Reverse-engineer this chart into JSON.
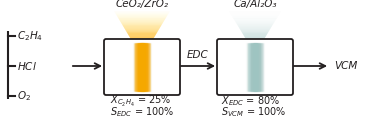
{
  "reactants": [
    "C₂H₄",
    "HCl",
    "O₂"
  ],
  "product": "VCM",
  "intermediate": "EDC",
  "cat1_label": "CeO₂/ZrO₂",
  "cat2_label": "Ca/Al₂O₃",
  "bg_color": "#ffffff",
  "text_color": "#231f20",
  "orange_color": "#f5a800",
  "teal_color": "#9ec4c1",
  "fig_w": 3.78,
  "fig_h": 1.21,
  "dpi": 100
}
